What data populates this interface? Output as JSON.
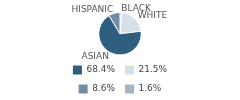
{
  "chart_data": {
    "type": "pie",
    "categories": [
      "BLACK",
      "WHITE",
      "ASIAN",
      "HISPANIC"
    ],
    "values": [
      1.6,
      21.5,
      68.4,
      8.6
    ],
    "value_labels": [
      "1.6%",
      "21.5%",
      "68.4%",
      "8.6%"
    ],
    "colors": [
      "#a3b6c6",
      "#d5e1ea",
      "#2f5f80",
      "#6f8ea6"
    ],
    "legend": "bottom"
  }
}
